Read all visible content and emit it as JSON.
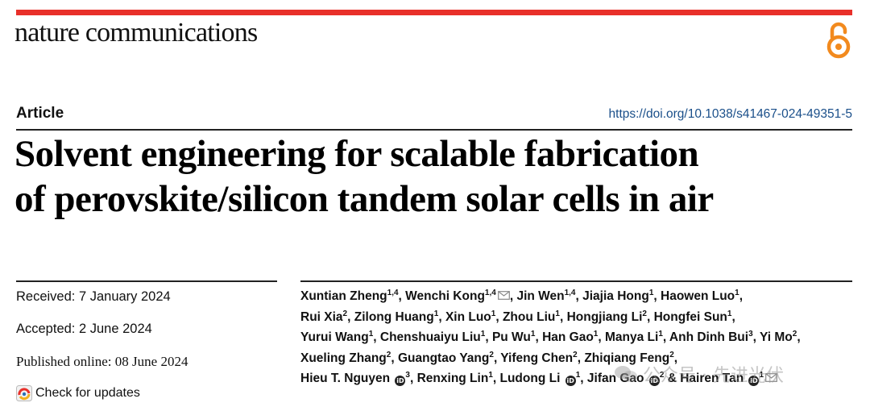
{
  "journal": {
    "name": "nature communications"
  },
  "article": {
    "type": "Article",
    "doi": "https://doi.org/10.1038/s41467-024-49351-5",
    "title_lines": [
      "Solvent engineering for scalable fabrication",
      "of perovskite/silicon tandem solar cells in air"
    ]
  },
  "history": {
    "received": "Received: 7 January 2024",
    "accepted": "Accepted: 2 June 2024",
    "published": "Published online: 08 June 2024",
    "check_updates": "Check for updates"
  },
  "authors": [
    [
      {
        "name": "Xuntian Zheng",
        "aff": "1,4"
      },
      {
        "name": "Wenchi Kong",
        "aff": "1,4",
        "mail": true
      },
      {
        "name": "Jin Wen",
        "aff": "1,4"
      },
      {
        "name": "Jiajia Hong",
        "aff": "1"
      },
      {
        "name": "Haowen Luo",
        "aff": "1",
        "last": true
      }
    ],
    [
      {
        "name": "Rui Xia",
        "aff": "2"
      },
      {
        "name": "Zilong Huang",
        "aff": "1"
      },
      {
        "name": "Xin Luo",
        "aff": "1"
      },
      {
        "name": "Zhou Liu",
        "aff": "1"
      },
      {
        "name": "Hongjiang Li",
        "aff": "2"
      },
      {
        "name": "Hongfei Sun",
        "aff": "1",
        "last": true
      }
    ],
    [
      {
        "name": "Yurui Wang",
        "aff": "1"
      },
      {
        "name": "Chenshuaiyu Liu",
        "aff": "1"
      },
      {
        "name": "Pu Wu",
        "aff": "1"
      },
      {
        "name": "Han Gao",
        "aff": "1"
      },
      {
        "name": "Manya Li",
        "aff": "1"
      },
      {
        "name": "Anh Dinh Bui",
        "aff": "3"
      },
      {
        "name": "Yi Mo",
        "aff": "2",
        "last": true
      }
    ],
    [
      {
        "name": "Xueling Zhang",
        "aff": "2"
      },
      {
        "name": "Guangtao Yang",
        "aff": "2"
      },
      {
        "name": "Yifeng Chen",
        "aff": "2"
      },
      {
        "name": "Zhiqiang Feng",
        "aff": "2",
        "last": true
      }
    ],
    [
      {
        "name": "Hieu T. Nguyen",
        "aff": "3",
        "orcid": true
      },
      {
        "name": "Renxing Lin",
        "aff": "1"
      },
      {
        "name": "Ludong Li",
        "aff": "1",
        "orcid": true
      },
      {
        "name": "Jifan Gao",
        "aff": "2",
        "orcid": true,
        "amp": true
      },
      {
        "name": "Hairen Tan",
        "aff": "1",
        "orcid": true,
        "mail": true,
        "final": true
      }
    ]
  ],
  "watermark": {
    "text": "公众号 · 先进光伏"
  },
  "colors": {
    "accent_bar": "#e8302a",
    "doi_link": "#1a4f8a",
    "open_access": "#f28a1e"
  },
  "icons": {
    "open_access": "open-access-icon",
    "check_updates": "check-for-updates-icon",
    "email": "envelope-icon",
    "orcid": "orcid-icon"
  }
}
